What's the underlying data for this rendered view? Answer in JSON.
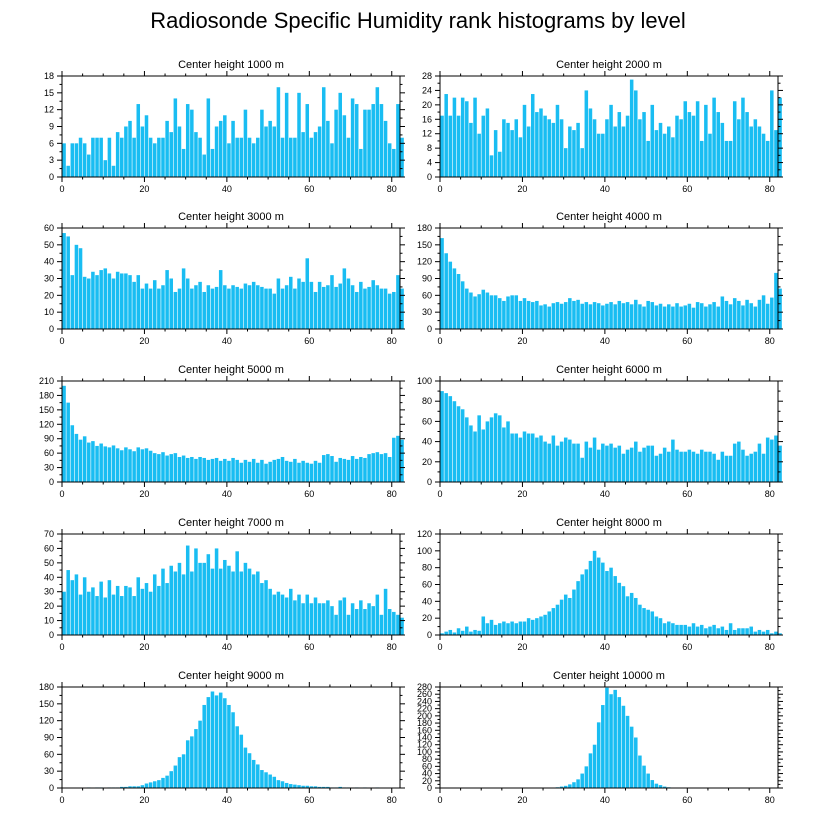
{
  "title": "Radiosonde Specific Humidity rank histograms by level",
  "bar_color": "#19bdf2",
  "chart_data": [
    {
      "type": "bar",
      "title": "Center height 1000 m",
      "xlim": [
        0,
        82
      ],
      "xticks": [
        0,
        20,
        40,
        60,
        80
      ],
      "ylim": [
        0,
        18
      ],
      "yticks": [
        0,
        3,
        6,
        9,
        12,
        15,
        18
      ],
      "values": [
        6,
        2,
        6,
        6,
        7,
        6,
        4,
        7,
        7,
        7,
        3,
        7,
        2,
        8,
        7,
        9,
        10,
        7,
        13,
        9,
        11,
        7,
        6,
        7,
        7,
        10,
        8,
        14,
        9,
        5,
        13,
        12,
        8,
        7,
        4,
        14,
        5,
        9,
        10,
        11,
        6,
        10,
        7,
        7,
        12,
        7,
        6,
        7,
        12,
        9,
        10,
        9,
        16,
        7,
        15,
        7,
        7,
        15,
        8,
        13,
        7,
        8,
        9,
        16,
        10,
        6,
        12,
        15,
        11,
        7,
        14,
        13,
        5,
        12,
        12,
        13,
        16,
        13,
        10,
        6,
        5,
        13,
        7
      ]
    },
    {
      "type": "bar",
      "title": "Center height 2000 m",
      "xlim": [
        0,
        82
      ],
      "xticks": [
        0,
        20,
        40,
        60,
        80
      ],
      "ylim": [
        0,
        28
      ],
      "yticks": [
        0,
        4,
        8,
        12,
        16,
        20,
        24,
        28
      ],
      "values": [
        17,
        23,
        17,
        22,
        17,
        22,
        21,
        15,
        22,
        12,
        17,
        19,
        6,
        13,
        7,
        16,
        15,
        13,
        16,
        11,
        20,
        14,
        23,
        18,
        19,
        17,
        16,
        15,
        20,
        16,
        8,
        14,
        13,
        15,
        8,
        24,
        19,
        16,
        12,
        12,
        16,
        20,
        14,
        18,
        14,
        17,
        27,
        24,
        16,
        18,
        10,
        20,
        13,
        15,
        12,
        14,
        11,
        17,
        16,
        21,
        18,
        17,
        21,
        10,
        20,
        12,
        22,
        18,
        15,
        10,
        10,
        21,
        16,
        22,
        18,
        14,
        16,
        14,
        12,
        10,
        24,
        13,
        22
      ]
    },
    {
      "type": "bar",
      "title": "Center height 3000 m",
      "xlim": [
        0,
        82
      ],
      "xticks": [
        0,
        20,
        40,
        60,
        80
      ],
      "ylim": [
        0,
        60
      ],
      "yticks": [
        0,
        10,
        20,
        30,
        40,
        50,
        60
      ],
      "values": [
        57,
        55,
        32,
        50,
        48,
        31,
        30,
        34,
        32,
        35,
        36,
        33,
        30,
        34,
        33,
        33,
        32,
        28,
        32,
        24,
        27,
        24,
        29,
        24,
        26,
        35,
        30,
        22,
        24,
        36,
        30,
        24,
        26,
        28,
        22,
        26,
        24,
        25,
        35,
        26,
        24,
        26,
        25,
        24,
        27,
        26,
        28,
        26,
        25,
        24,
        24,
        21,
        30,
        24,
        26,
        31,
        24,
        30,
        28,
        42,
        28,
        22,
        28,
        25,
        26,
        32,
        25,
        27,
        36,
        30,
        26,
        22,
        28,
        24,
        25,
        29,
        26,
        24,
        24,
        21,
        22,
        32,
        24
      ]
    },
    {
      "type": "bar",
      "title": "Center height 4000 m",
      "xlim": [
        0,
        82
      ],
      "xticks": [
        0,
        20,
        40,
        60,
        80
      ],
      "ylim": [
        0,
        180
      ],
      "yticks": [
        0,
        30,
        60,
        90,
        120,
        150,
        180
      ],
      "values": [
        162,
        135,
        120,
        108,
        98,
        85,
        72,
        65,
        58,
        62,
        70,
        65,
        60,
        60,
        55,
        50,
        58,
        60,
        60,
        50,
        55,
        50,
        48,
        50,
        42,
        44,
        40,
        46,
        48,
        45,
        48,
        55,
        50,
        52,
        45,
        48,
        44,
        48,
        46,
        42,
        45,
        48,
        44,
        50,
        46,
        48,
        44,
        52,
        44,
        40,
        50,
        48,
        42,
        45,
        40,
        44,
        40,
        46,
        40,
        42,
        45,
        38,
        48,
        46,
        40,
        44,
        48,
        40,
        58,
        50,
        44,
        55,
        50,
        42,
        52,
        46,
        40,
        52,
        60,
        45,
        56,
        100,
        72
      ]
    },
    {
      "type": "bar",
      "title": "Center height 5000 m",
      "xlim": [
        0,
        82
      ],
      "xticks": [
        0,
        20,
        40,
        60,
        80
      ],
      "ylim": [
        0,
        210
      ],
      "yticks": [
        0,
        30,
        60,
        90,
        120,
        150,
        180,
        210
      ],
      "values": [
        200,
        165,
        118,
        100,
        88,
        95,
        82,
        85,
        75,
        80,
        74,
        72,
        76,
        70,
        66,
        72,
        68,
        64,
        72,
        68,
        70,
        65,
        60,
        58,
        62,
        55,
        58,
        60,
        52,
        55,
        50,
        52,
        48,
        52,
        50,
        46,
        48,
        50,
        44,
        48,
        44,
        50,
        46,
        40,
        46,
        42,
        48,
        40,
        46,
        38,
        42,
        46,
        48,
        52,
        44,
        42,
        48,
        40,
        44,
        40,
        38,
        44,
        40,
        56,
        58,
        54,
        42,
        50,
        48,
        46,
        54,
        48,
        52,
        50,
        58,
        60,
        62,
        58,
        60,
        52,
        92,
        96,
        88
      ]
    },
    {
      "type": "bar",
      "title": "Center height 6000 m",
      "xlim": [
        0,
        82
      ],
      "xticks": [
        0,
        20,
        40,
        60,
        80
      ],
      "ylim": [
        0,
        100
      ],
      "yticks": [
        0,
        20,
        40,
        60,
        80,
        100
      ],
      "values": [
        90,
        88,
        85,
        80,
        75,
        72,
        64,
        56,
        50,
        66,
        52,
        60,
        64,
        68,
        66,
        54,
        60,
        48,
        48,
        44,
        50,
        48,
        48,
        44,
        46,
        40,
        38,
        46,
        36,
        40,
        44,
        42,
        38,
        38,
        24,
        40,
        34,
        44,
        32,
        38,
        36,
        38,
        34,
        36,
        28,
        32,
        34,
        40,
        30,
        34,
        36,
        36,
        26,
        28,
        34,
        30,
        42,
        32,
        30,
        30,
        32,
        30,
        28,
        32,
        30,
        30,
        28,
        22,
        30,
        26,
        26,
        38,
        40,
        32,
        26,
        28,
        30,
        38,
        28,
        44,
        42,
        46,
        36
      ]
    },
    {
      "type": "bar",
      "title": "Center height 7000 m",
      "xlim": [
        0,
        82
      ],
      "xticks": [
        0,
        20,
        40,
        60,
        80
      ],
      "ylim": [
        0,
        70
      ],
      "yticks": [
        0,
        10,
        20,
        30,
        40,
        50,
        60,
        70
      ],
      "values": [
        30,
        45,
        38,
        42,
        28,
        40,
        30,
        33,
        27,
        37,
        26,
        38,
        28,
        34,
        27,
        34,
        33,
        27,
        40,
        32,
        36,
        30,
        42,
        34,
        46,
        36,
        48,
        44,
        50,
        42,
        62,
        44,
        60,
        50,
        50,
        56,
        46,
        60,
        46,
        52,
        48,
        44,
        58,
        44,
        50,
        46,
        42,
        44,
        36,
        38,
        32,
        28,
        30,
        28,
        26,
        32,
        24,
        28,
        22,
        28,
        22,
        26,
        22,
        22,
        24,
        20,
        14,
        24,
        26,
        14,
        22,
        18,
        24,
        18,
        22,
        20,
        28,
        14,
        32,
        18,
        16,
        14,
        12
      ]
    },
    {
      "type": "bar",
      "title": "Center height 8000 m",
      "xlim": [
        0,
        82
      ],
      "xticks": [
        0,
        20,
        40,
        60,
        80
      ],
      "ylim": [
        0,
        120
      ],
      "yticks": [
        0,
        20,
        40,
        60,
        80,
        100,
        120
      ],
      "values": [
        2,
        4,
        6,
        3,
        8,
        5,
        10,
        4,
        6,
        5,
        22,
        14,
        18,
        12,
        14,
        16,
        14,
        16,
        14,
        16,
        16,
        20,
        18,
        20,
        22,
        24,
        28,
        32,
        36,
        42,
        48,
        44,
        54,
        64,
        72,
        78,
        88,
        100,
        92,
        86,
        76,
        80,
        70,
        62,
        58,
        46,
        50,
        44,
        36,
        32,
        30,
        28,
        22,
        20,
        14,
        16,
        14,
        12,
        12,
        12,
        10,
        14,
        10,
        12,
        8,
        10,
        12,
        8,
        10,
        6,
        14,
        6,
        8,
        8,
        8,
        10,
        4,
        6,
        4,
        6,
        2,
        4,
        2
      ]
    },
    {
      "type": "bar",
      "title": "Center height 9000 m",
      "xlim": [
        0,
        82
      ],
      "xticks": [
        0,
        20,
        40,
        60,
        80
      ],
      "ylim": [
        0,
        180
      ],
      "yticks": [
        0,
        30,
        60,
        90,
        120,
        150,
        180
      ],
      "values": [
        0,
        0,
        0,
        0,
        0,
        0,
        1,
        0,
        1,
        1,
        0,
        1,
        1,
        1,
        2,
        2,
        3,
        3,
        3,
        5,
        8,
        10,
        12,
        14,
        18,
        22,
        30,
        40,
        55,
        60,
        85,
        92,
        105,
        120,
        148,
        162,
        172,
        165,
        170,
        160,
        148,
        135,
        110,
        95,
        72,
        62,
        50,
        42,
        32,
        28,
        24,
        20,
        14,
        12,
        9,
        7,
        6,
        5,
        4,
        4,
        3,
        3,
        2,
        2,
        2,
        1,
        1,
        2,
        1,
        1,
        0,
        1,
        0,
        1,
        0,
        0,
        1,
        0,
        0,
        0,
        0,
        0,
        0
      ]
    },
    {
      "type": "bar",
      "title": "Center height 10000 m",
      "xlim": [
        0,
        82
      ],
      "xticks": [
        0,
        20,
        40,
        60,
        80
      ],
      "ylim": [
        0,
        280
      ],
      "yticks": [
        0,
        20,
        40,
        60,
        80,
        100,
        120,
        140,
        160,
        180,
        200,
        220,
        240,
        260,
        280
      ],
      "values": [
        0,
        0,
        0,
        0,
        0,
        0,
        0,
        0,
        0,
        0,
        0,
        0,
        0,
        0,
        0,
        0,
        0,
        0,
        0,
        0,
        0,
        0,
        0,
        0,
        0,
        0,
        0,
        0,
        2,
        4,
        6,
        10,
        16,
        24,
        40,
        60,
        96,
        120,
        182,
        230,
        278,
        260,
        272,
        252,
        228,
        200,
        170,
        140,
        90,
        62,
        40,
        22,
        12,
        8,
        4,
        2,
        1,
        0,
        0,
        0,
        0,
        0,
        0,
        0,
        0,
        0,
        0,
        0,
        0,
        0,
        0,
        0,
        0,
        0,
        0,
        0,
        0,
        0,
        0,
        0,
        0,
        0,
        0
      ]
    }
  ]
}
